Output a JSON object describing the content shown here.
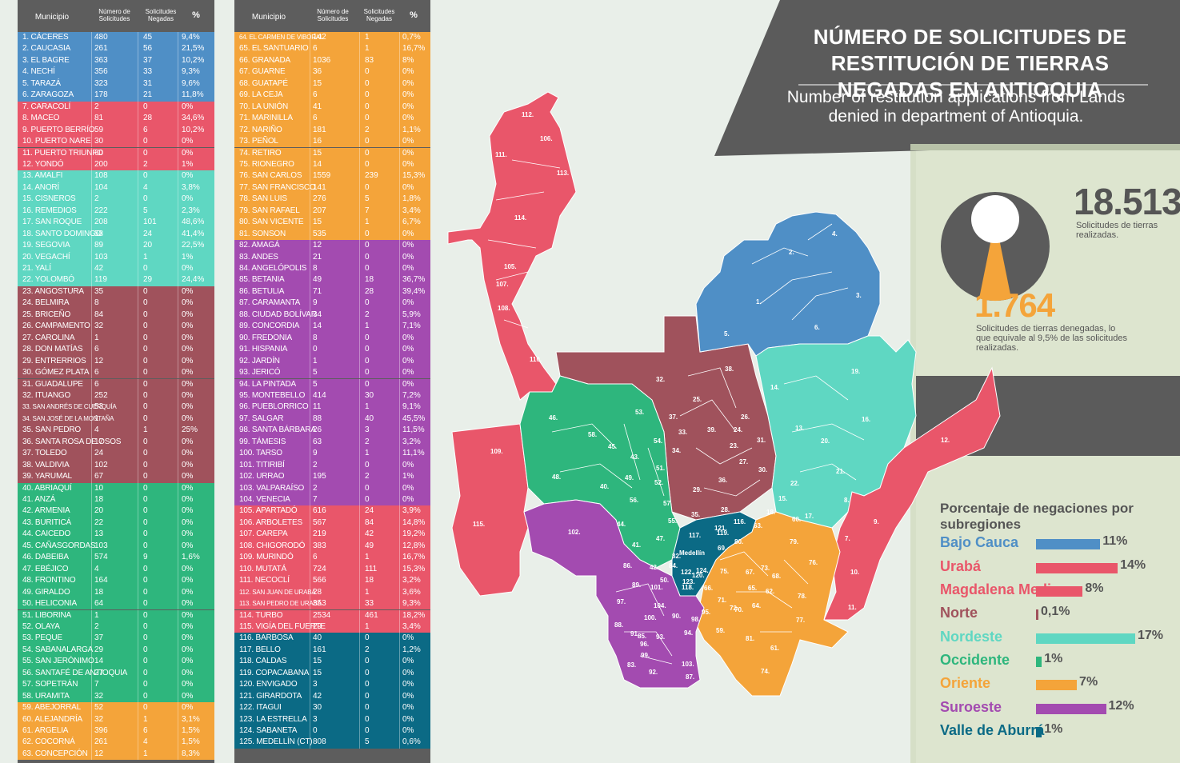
{
  "header": {
    "municipio": "Municipio",
    "numero": "Número de Solicitudes",
    "negadas": "Solicitudes Negadas",
    "pct": "%"
  },
  "colors": {
    "bajo_cauca": "#4f8fc6",
    "uraba": "#e9566a",
    "magdalena_medio": "#e9566a",
    "norte": "#a0525c",
    "nordeste": "#5fd7c2",
    "occidente": "#2eb67d",
    "oriente": "#f4a43a",
    "suroeste": "#a34bb0",
    "valle_aburra": "#0b6a85"
  },
  "table_left": [
    {
      "n": "1. CÁCERES",
      "v": "480",
      "g": "45",
      "p": "9,4%",
      "c": "bajo_cauca"
    },
    {
      "n": "2. CAUCASIA",
      "v": "261",
      "g": "56",
      "p": "21,5%",
      "c": "bajo_cauca"
    },
    {
      "n": "3. EL BAGRE",
      "v": "363",
      "g": "37",
      "p": "10,2%",
      "c": "bajo_cauca"
    },
    {
      "n": "4. NECHÍ",
      "v": "356",
      "g": "33",
      "p": "9,3%",
      "c": "bajo_cauca"
    },
    {
      "n": "5. TARAZÁ",
      "v": "323",
      "g": "31",
      "p": "9,6%",
      "c": "bajo_cauca"
    },
    {
      "n": "6. ZARAGOZA",
      "v": "178",
      "g": "21",
      "p": "11,8%",
      "c": "bajo_cauca"
    },
    {
      "n": "7. CARACOLÍ",
      "v": "2",
      "g": "0",
      "p": "0%",
      "c": "magdalena_medio"
    },
    {
      "n": "8. MACEO",
      "v": "81",
      "g": "28",
      "p": "34,6%",
      "c": "magdalena_medio"
    },
    {
      "n": "9. PUERTO BERRÍO",
      "v": "59",
      "g": "6",
      "p": "10,2%",
      "c": "magdalena_medio"
    },
    {
      "n": "10. PUERTO NARE",
      "v": "30",
      "g": "0",
      "p": "0%",
      "c": "magdalena_medio"
    },
    {
      "n": "11. PUERTO TRIUNFO",
      "v": "60",
      "g": "0",
      "p": "0%",
      "c": "magdalena_medio"
    },
    {
      "n": "12. YONDÓ",
      "v": "200",
      "g": "2",
      "p": "1%",
      "c": "magdalena_medio"
    },
    {
      "n": "13. AMALFI",
      "v": "108",
      "g": "0",
      "p": "0%",
      "c": "nordeste"
    },
    {
      "n": "14. ANORÍ",
      "v": "104",
      "g": "4",
      "p": "3,8%",
      "c": "nordeste"
    },
    {
      "n": "15. CISNEROS",
      "v": "2",
      "g": "0",
      "p": "0%",
      "c": "nordeste"
    },
    {
      "n": "16. REMEDIOS",
      "v": "222",
      "g": "5",
      "p": "2,3%",
      "c": "nordeste"
    },
    {
      "n": "17. SAN ROQUE",
      "v": "208",
      "g": "101",
      "p": "48,6%",
      "c": "nordeste"
    },
    {
      "n": "18. SANTO DOMINGO",
      "v": "58",
      "g": "24",
      "p": "41,4%",
      "c": "nordeste"
    },
    {
      "n": "19. SEGOVIA",
      "v": "89",
      "g": "20",
      "p": "22,5%",
      "c": "nordeste"
    },
    {
      "n": "20. VEGACHÍ",
      "v": "103",
      "g": "1",
      "p": "1%",
      "c": "nordeste"
    },
    {
      "n": "21. YALÍ",
      "v": "42",
      "g": "0",
      "p": "0%",
      "c": "nordeste"
    },
    {
      "n": "22. YOLOMBÓ",
      "v": "119",
      "g": "29",
      "p": "24,4%",
      "c": "nordeste"
    },
    {
      "n": "23. ANGOSTURA",
      "v": "35",
      "g": "0",
      "p": "0%",
      "c": "norte"
    },
    {
      "n": "24. BELMIRA",
      "v": "8",
      "g": "0",
      "p": "0%",
      "c": "norte"
    },
    {
      "n": "25. BRICEÑO",
      "v": "84",
      "g": "0",
      "p": "0%",
      "c": "norte"
    },
    {
      "n": "26. CAMPAMENTO",
      "v": "32",
      "g": "0",
      "p": "0%",
      "c": "norte"
    },
    {
      "n": "27. CAROLINA",
      "v": "1",
      "g": "0",
      "p": "0%",
      "c": "norte"
    },
    {
      "n": "28. DON MATÍAS",
      "v": "6",
      "g": "0",
      "p": "0%",
      "c": "norte"
    },
    {
      "n": "29. ENTRERRIOS",
      "v": "12",
      "g": "0",
      "p": "0%",
      "c": "norte"
    },
    {
      "n": "30. GÓMEZ PLATA",
      "v": "6",
      "g": "0",
      "p": "0%",
      "c": "norte"
    },
    {
      "n": "31. GUADALUPE",
      "v": "6",
      "g": "0",
      "p": "0%",
      "c": "norte"
    },
    {
      "n": "32. ITUANGO",
      "v": "252",
      "g": "0",
      "p": "0%",
      "c": "norte"
    },
    {
      "n": "33. SAN ANDRÉS DE CUERQUÍA",
      "v": "53",
      "g": "0",
      "p": "0%",
      "c": "norte",
      "small": true
    },
    {
      "n": "34. SAN JOSÉ DE LA MONTAÑA",
      "v": "1",
      "g": "0",
      "p": "0%",
      "c": "norte",
      "small": true
    },
    {
      "n": "35. SAN PEDRO",
      "v": "4",
      "g": "1",
      "p": "25%",
      "c": "norte"
    },
    {
      "n": "36. SANTA ROSA DE OSOS",
      "v": "17",
      "g": "0",
      "p": "0%",
      "c": "norte"
    },
    {
      "n": "37. TOLEDO",
      "v": "24",
      "g": "0",
      "p": "0%",
      "c": "norte"
    },
    {
      "n": "38. VALDIVIA",
      "v": "102",
      "g": "0",
      "p": "0%",
      "c": "norte"
    },
    {
      "n": "39. YARUMAL",
      "v": "67",
      "g": "0",
      "p": "0%",
      "c": "norte"
    },
    {
      "n": "40. ABRIAQUÍ",
      "v": "10",
      "g": "0",
      "p": "0%",
      "c": "occidente"
    },
    {
      "n": "41. ANZÁ",
      "v": "18",
      "g": "0",
      "p": "0%",
      "c": "occidente"
    },
    {
      "n": "42. ARMENIA",
      "v": "20",
      "g": "0",
      "p": "0%",
      "c": "occidente"
    },
    {
      "n": "43. BURITICÁ",
      "v": "22",
      "g": "0",
      "p": "0%",
      "c": "occidente"
    },
    {
      "n": "44. CAICEDO",
      "v": "13",
      "g": "0",
      "p": "0%",
      "c": "occidente"
    },
    {
      "n": "45. CAÑASGORDAS",
      "v": "103",
      "g": "0",
      "p": "0%",
      "c": "occidente"
    },
    {
      "n": "46. DABEIBA",
      "v": "574",
      "g": "9",
      "p": "1,6%",
      "c": "occidente"
    },
    {
      "n": "47. EBÉJICO",
      "v": "4",
      "g": "0",
      "p": "0%",
      "c": "occidente"
    },
    {
      "n": "48. FRONTINO",
      "v": "164",
      "g": "0",
      "p": "0%",
      "c": "occidente"
    },
    {
      "n": "49. GIRALDO",
      "v": "18",
      "g": "0",
      "p": "0%",
      "c": "occidente"
    },
    {
      "n": "50. HELICONIA",
      "v": "64",
      "g": "0",
      "p": "0%",
      "c": "occidente"
    },
    {
      "n": "51. LIBORINA",
      "v": "1",
      "g": "0",
      "p": "0%",
      "c": "occidente"
    },
    {
      "n": "52. OLAYA",
      "v": "2",
      "g": "0",
      "p": "0%",
      "c": "occidente"
    },
    {
      "n": "53. PEQUE",
      "v": "37",
      "g": "0",
      "p": "0%",
      "c": "occidente"
    },
    {
      "n": "54. SABANALARGA",
      "v": "29",
      "g": "0",
      "p": "0%",
      "c": "occidente"
    },
    {
      "n": "55. SAN JERÓNIMO",
      "v": "14",
      "g": "0",
      "p": "0%",
      "c": "occidente"
    },
    {
      "n": "56. SANTAFÉ DE ANTIOQUIA",
      "v": "27",
      "g": "0",
      "p": "0%",
      "c": "occidente"
    },
    {
      "n": "57. SOPETRÁN",
      "v": "7",
      "g": "0",
      "p": "0%",
      "c": "occidente"
    },
    {
      "n": "58. URAMITA",
      "v": "32",
      "g": "0",
      "p": "0%",
      "c": "occidente"
    },
    {
      "n": "59. ABEJORRAL",
      "v": "52",
      "g": "0",
      "p": "0%",
      "c": "oriente"
    },
    {
      "n": "60. ALEJANDRÍA",
      "v": "32",
      "g": "1",
      "p": "3,1%",
      "c": "oriente"
    },
    {
      "n": "61. ARGELIA",
      "v": "396",
      "g": "6",
      "p": "1,5%",
      "c": "oriente"
    },
    {
      "n": "62. COCORNÁ",
      "v": "261",
      "g": "4",
      "p": "1,5%",
      "c": "oriente"
    },
    {
      "n": "63. CONCEPCIÓN",
      "v": "12",
      "g": "1",
      "p": "8,3%",
      "c": "oriente"
    }
  ],
  "table_right": [
    {
      "n": "64. EL CARMEN DE VIBORAL",
      "v": "142",
      "g": "1",
      "p": "0,7%",
      "c": "oriente",
      "small": true
    },
    {
      "n": "65. EL SANTUARIO",
      "v": "6",
      "g": "1",
      "p": "16,7%",
      "c": "oriente"
    },
    {
      "n": "66. GRANADA",
      "v": "1036",
      "g": "83",
      "p": "8%",
      "c": "oriente"
    },
    {
      "n": "67. GUARNE",
      "v": "36",
      "g": "0",
      "p": "0%",
      "c": "oriente"
    },
    {
      "n": "68. GUATAPÉ",
      "v": "15",
      "g": "0",
      "p": "0%",
      "c": "oriente"
    },
    {
      "n": "69. LA CEJA",
      "v": "6",
      "g": "0",
      "p": "0%",
      "c": "oriente"
    },
    {
      "n": "70. LA UNIÓN",
      "v": "41",
      "g": "0",
      "p": "0%",
      "c": "oriente"
    },
    {
      "n": "71. MARINILLA",
      "v": "6",
      "g": "0",
      "p": "0%",
      "c": "oriente"
    },
    {
      "n": "72. NARIÑO",
      "v": "181",
      "g": "2",
      "p": "1,1%",
      "c": "oriente"
    },
    {
      "n": "73. PEÑOL",
      "v": "16",
      "g": "0",
      "p": "0%",
      "c": "oriente"
    },
    {
      "n": "74. RETIRO",
      "v": "15",
      "g": "0",
      "p": "0%",
      "c": "oriente"
    },
    {
      "n": "75. RIONEGRO",
      "v": "14",
      "g": "0",
      "p": "0%",
      "c": "oriente"
    },
    {
      "n": "76. SAN CARLOS",
      "v": "1559",
      "g": "239",
      "p": "15,3%",
      "c": "oriente"
    },
    {
      "n": "77. SAN FRANCISCO",
      "v": "141",
      "g": "0",
      "p": "0%",
      "c": "oriente"
    },
    {
      "n": "78. SAN LUIS",
      "v": "276",
      "g": "5",
      "p": "1,8%",
      "c": "oriente"
    },
    {
      "n": "79. SAN RAFAEL",
      "v": "207",
      "g": "7",
      "p": "3,4%",
      "c": "oriente"
    },
    {
      "n": "80. SAN VICENTE",
      "v": "15",
      "g": "1",
      "p": "6,7%",
      "c": "oriente"
    },
    {
      "n": "81. SONSON",
      "v": "535",
      "g": "0",
      "p": "0%",
      "c": "oriente"
    },
    {
      "n": "82. AMAGÁ",
      "v": "12",
      "g": "0",
      "p": "0%",
      "c": "suroeste"
    },
    {
      "n": "83. ANDES",
      "v": "21",
      "g": "0",
      "p": "0%",
      "c": "suroeste"
    },
    {
      "n": "84. ANGELÓPOLIS",
      "v": "8",
      "g": "0",
      "p": "0%",
      "c": "suroeste"
    },
    {
      "n": "85. BETANIA",
      "v": "49",
      "g": "18",
      "p": "36,7%",
      "c": "suroeste"
    },
    {
      "n": "86. BETULIA",
      "v": "71",
      "g": "28",
      "p": "39,4%",
      "c": "suroeste"
    },
    {
      "n": "87. CARAMANTA",
      "v": "9",
      "g": "0",
      "p": "0%",
      "c": "suroeste"
    },
    {
      "n": "88. CIUDAD BOLÍVAR",
      "v": "34",
      "g": "2",
      "p": "5,9%",
      "c": "suroeste"
    },
    {
      "n": "89. CONCORDIA",
      "v": "14",
      "g": "1",
      "p": "7,1%",
      "c": "suroeste"
    },
    {
      "n": "90. FREDONIA",
      "v": "8",
      "g": "0",
      "p": "0%",
      "c": "suroeste"
    },
    {
      "n": "91. HISPANIA",
      "v": "0",
      "g": "0",
      "p": "0%",
      "c": "suroeste"
    },
    {
      "n": "92. JARDÍN",
      "v": "1",
      "g": "0",
      "p": "0%",
      "c": "suroeste"
    },
    {
      "n": "93. JERICÓ",
      "v": "5",
      "g": "0",
      "p": "0%",
      "c": "suroeste"
    },
    {
      "n": "94. LA PINTADA",
      "v": "5",
      "g": "0",
      "p": "0%",
      "c": "suroeste"
    },
    {
      "n": "95. MONTEBELLO",
      "v": "414",
      "g": "30",
      "p": "7,2%",
      "c": "suroeste"
    },
    {
      "n": "96. PUEBLORRICO",
      "v": "11",
      "g": "1",
      "p": "9,1%",
      "c": "suroeste"
    },
    {
      "n": "97. SALGAR",
      "v": "88",
      "g": "40",
      "p": "45,5%",
      "c": "suroeste"
    },
    {
      "n": "98. SANTA BÁRBARA",
      "v": "26",
      "g": "3",
      "p": "11,5%",
      "c": "suroeste"
    },
    {
      "n": "99. TÁMESIS",
      "v": "63",
      "g": "2",
      "p": "3,2%",
      "c": "suroeste"
    },
    {
      "n": "100. TARSO",
      "v": "9",
      "g": "1",
      "p": "11,1%",
      "c": "suroeste"
    },
    {
      "n": "101. TITIRIBÍ",
      "v": "2",
      "g": "0",
      "p": "0%",
      "c": "suroeste"
    },
    {
      "n": "102. URRAO",
      "v": "195",
      "g": "2",
      "p": "1%",
      "c": "suroeste"
    },
    {
      "n": "103. VALPARAÍSO",
      "v": "2",
      "g": "0",
      "p": "0%",
      "c": "suroeste"
    },
    {
      "n": "104. VENECIA",
      "v": "7",
      "g": "0",
      "p": "0%",
      "c": "suroeste"
    },
    {
      "n": "105. APARTADÓ",
      "v": "616",
      "g": "24",
      "p": "3,9%",
      "c": "uraba"
    },
    {
      "n": "106. ARBOLETES",
      "v": "567",
      "g": "84",
      "p": "14,8%",
      "c": "uraba"
    },
    {
      "n": "107. CAREPA",
      "v": "219",
      "g": "42",
      "p": "19,2%",
      "c": "uraba"
    },
    {
      "n": "108. CHIGORODÓ",
      "v": "383",
      "g": "49",
      "p": "12,8%",
      "c": "uraba"
    },
    {
      "n": "109. MURINDÓ",
      "v": "6",
      "g": "1",
      "p": "16,7%",
      "c": "uraba"
    },
    {
      "n": "110. MUTATÁ",
      "v": "724",
      "g": "111",
      "p": "15,3%",
      "c": "uraba"
    },
    {
      "n": "111. NECOCLÍ",
      "v": "566",
      "g": "18",
      "p": "3,2%",
      "c": "uraba"
    },
    {
      "n": "112. SAN JUAN DE URABÁ",
      "v": "28",
      "g": "1",
      "p": "3,6%",
      "c": "uraba",
      "small": true
    },
    {
      "n": "113. SAN PEDRO DE URABÁ",
      "v": "353",
      "g": "33",
      "p": "9,3%",
      "c": "uraba",
      "small": true
    },
    {
      "n": "114. TURBO",
      "v": "2534",
      "g": "461",
      "p": "18,2%",
      "c": "uraba"
    },
    {
      "n": "115. VIGÍA DEL FUERTE",
      "v": "29",
      "g": "1",
      "p": "3,4%",
      "c": "uraba"
    },
    {
      "n": "116. BARBOSA",
      "v": "40",
      "g": "0",
      "p": "0%",
      "c": "valle_aburra"
    },
    {
      "n": "117. BELLO",
      "v": "161",
      "g": "2",
      "p": "1,2%",
      "c": "valle_aburra"
    },
    {
      "n": "118. CALDAS",
      "v": "15",
      "g": "0",
      "p": "0%",
      "c": "valle_aburra"
    },
    {
      "n": "119. COPACABANA",
      "v": "15",
      "g": "0",
      "p": "0%",
      "c": "valle_aburra"
    },
    {
      "n": "120. ENVIGADO",
      "v": "3",
      "g": "0",
      "p": "0%",
      "c": "valle_aburra"
    },
    {
      "n": "121. GIRARDOTA",
      "v": "42",
      "g": "0",
      "p": "0%",
      "c": "valle_aburra"
    },
    {
      "n": "122. ITAGUI",
      "v": "30",
      "g": "0",
      "p": "0%",
      "c": "valle_aburra"
    },
    {
      "n": "123. LA ESTRELLA",
      "v": "3",
      "g": "0",
      "p": "0%",
      "c": "valle_aburra"
    },
    {
      "n": "124. SABANETA",
      "v": "0",
      "g": "0",
      "p": "0%",
      "c": "valle_aburra"
    },
    {
      "n": "125. MEDELLÍN (CT)",
      "v": "808",
      "g": "5",
      "p": "0,6%",
      "c": "valle_aburra"
    }
  ],
  "title": "NÚMERO DE SOLICITUDES DE RESTITUCIÓN DE TIERRAS NEGADAS EN ANTIOQUIA",
  "subtitle": "Number of restitution applications from Lands denied in department of Antioquia.",
  "total": {
    "value": "18.513",
    "label": "Solicitudes de tierras realizadas."
  },
  "denied": {
    "value": "1.764",
    "label": "Solicitudes de tierras denegadas, lo que equivale al 9,5% de las solicitudes realizadas.",
    "fraction": 0.095
  },
  "legend": {
    "title": "Porcentaje de negaciones por subregiones",
    "items": [
      {
        "name": "Bajo Cauca",
        "value": "11%",
        "pct": 11,
        "c": "bajo_cauca"
      },
      {
        "name": "Urabá",
        "value": "14%",
        "pct": 14,
        "c": "uraba"
      },
      {
        "name": "Magdalena Medio",
        "value": "8%",
        "pct": 8,
        "c": "magdalena_medio"
      },
      {
        "name": "Norte",
        "value": "0,1%",
        "pct": 0.1,
        "c": "norte"
      },
      {
        "name": "Nordeste",
        "value": "17%",
        "pct": 17,
        "c": "nordeste"
      },
      {
        "name": "Occidente",
        "value": "1%",
        "pct": 1,
        "c": "occidente"
      },
      {
        "name": "Oriente",
        "value": "7%",
        "pct": 7,
        "c": "oriente"
      },
      {
        "name": "Suroeste",
        "value": "12%",
        "pct": 12,
        "c": "suroeste"
      },
      {
        "name": "Valle de Aburrá",
        "value": "1%",
        "pct": 1,
        "c": "valle_aburra"
      }
    ]
  },
  "map": {
    "city_label": "Medellín",
    "labels": [
      "1.",
      "2.",
      "3.",
      "4.",
      "5.",
      "6.",
      "7.",
      "8.",
      "9.",
      "10.",
      "11.",
      "12.",
      "13.",
      "14.",
      "15.",
      "16.",
      "17.",
      "18.",
      "19.",
      "20.",
      "21.",
      "22.",
      "23.",
      "24.",
      "25.",
      "26.",
      "27.",
      "28.",
      "29.",
      "30.",
      "31.",
      "32.",
      "33.",
      "34.",
      "35.",
      "36.",
      "37.",
      "38.",
      "39.",
      "40.",
      "41.",
      "42.",
      "43.",
      "44.",
      "45.",
      "46.",
      "47.",
      "48.",
      "49.",
      "50.",
      "51.",
      "52.",
      "53.",
      "54.",
      "55.",
      "56.",
      "57.",
      "58.",
      "59.",
      "60.",
      "61.",
      "62.",
      "63.",
      "64.",
      "65.",
      "66.",
      "67.",
      "68.",
      "69.",
      "70.",
      "71.",
      "72.",
      "73.",
      "74.",
      "75.",
      "76.",
      "77.",
      "78.",
      "79.",
      "80.",
      "81.",
      "82.",
      "83.",
      "84.",
      "85.",
      "86.",
      "87.",
      "88.",
      "89.",
      "90.",
      "91.",
      "92.",
      "93.",
      "94.",
      "95.",
      "96.",
      "97.",
      "98.",
      "99.",
      "100.",
      "101.",
      "102.",
      "103.",
      "104.",
      "105.",
      "106.",
      "107.",
      "108.",
      "109.",
      "110.",
      "111.",
      "112.",
      "113.",
      "114.",
      "115.",
      "116.",
      "117.",
      "118.",
      "119.",
      "120.",
      "121.",
      "122.",
      "123.",
      "124."
    ]
  }
}
